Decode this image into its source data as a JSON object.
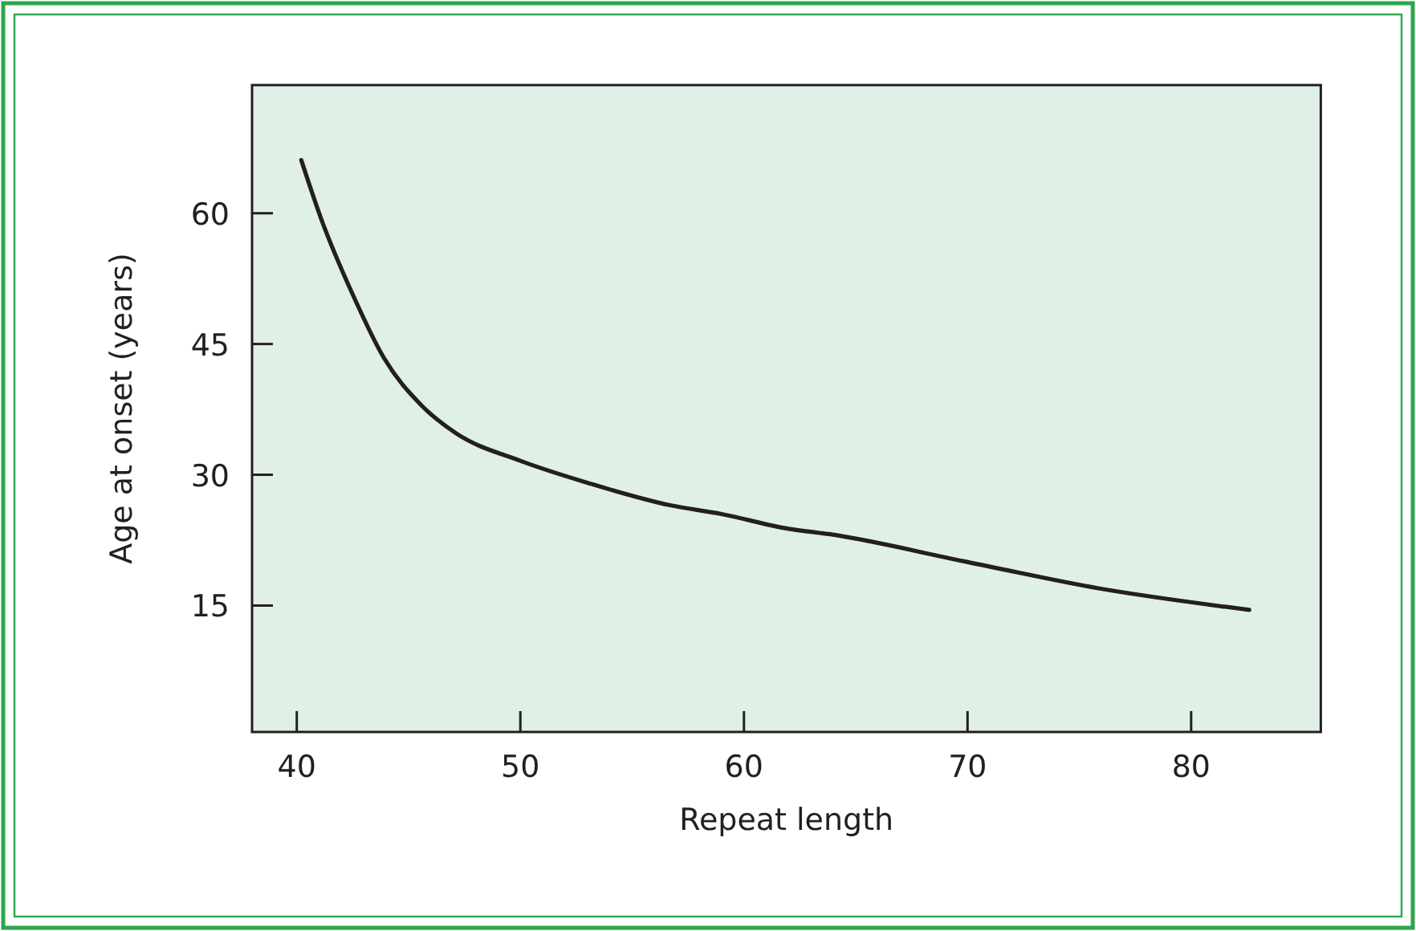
{
  "chart_data": {
    "type": "line",
    "xlabel": "Repeat length",
    "ylabel": "Age at onset (years)",
    "xlim": [
      38,
      85.8
    ],
    "ylim": [
      0.5,
      74.7
    ],
    "xticks": [
      40,
      50,
      60,
      70,
      80
    ],
    "yticks": [
      15,
      30,
      45,
      60
    ],
    "grid": false,
    "marker": "none",
    "line_style": "solid",
    "series": [
      {
        "color": "#231f20",
        "x": [
          40.2,
          41.1,
          42.5,
          43.9,
          45.6,
          47.1,
          50,
          53.1,
          56.7,
          59,
          62,
          63.8,
          69.8,
          75.8,
          82.6
        ],
        "values": [
          66.1,
          59.3,
          50.7,
          43.4,
          37.9,
          34.8,
          31.6,
          29,
          26.5,
          25.5,
          23.8,
          23.2,
          20.1,
          17,
          14.5
        ]
      }
    ]
  }
}
